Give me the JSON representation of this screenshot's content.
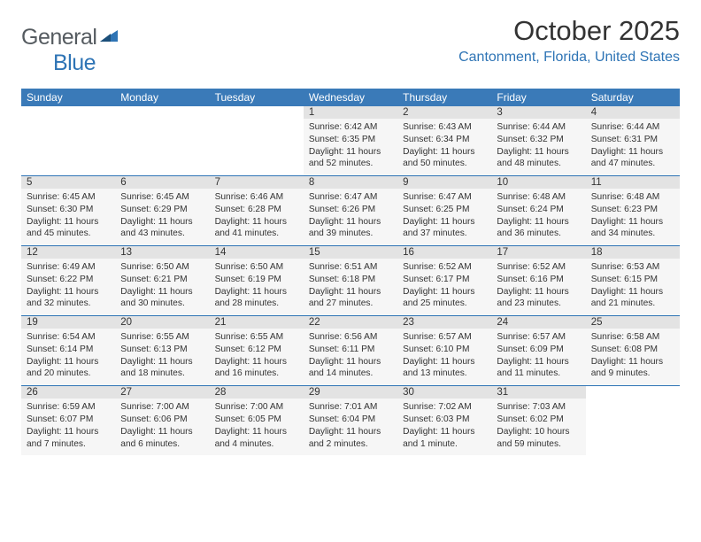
{
  "brand": {
    "word1": "General",
    "word2": "Blue",
    "text_color": "#555b60",
    "accent_color": "#2e74b5"
  },
  "title": "October 2025",
  "location": "Cantonment, Florida, United States",
  "theme": {
    "header_bg": "#3a7ab8",
    "header_text": "#ffffff",
    "daynum_bg": "#e3e3e3",
    "info_bg": "#f6f6f6",
    "border_color": "#2e74b5",
    "body_text": "#333333"
  },
  "day_headers": [
    "Sunday",
    "Monday",
    "Tuesday",
    "Wednesday",
    "Thursday",
    "Friday",
    "Saturday"
  ],
  "weeks": [
    [
      null,
      null,
      null,
      {
        "n": "1",
        "sunrise": "6:42 AM",
        "sunset": "6:35 PM",
        "daylight": "11 hours and 52 minutes."
      },
      {
        "n": "2",
        "sunrise": "6:43 AM",
        "sunset": "6:34 PM",
        "daylight": "11 hours and 50 minutes."
      },
      {
        "n": "3",
        "sunrise": "6:44 AM",
        "sunset": "6:32 PM",
        "daylight": "11 hours and 48 minutes."
      },
      {
        "n": "4",
        "sunrise": "6:44 AM",
        "sunset": "6:31 PM",
        "daylight": "11 hours and 47 minutes."
      }
    ],
    [
      {
        "n": "5",
        "sunrise": "6:45 AM",
        "sunset": "6:30 PM",
        "daylight": "11 hours and 45 minutes."
      },
      {
        "n": "6",
        "sunrise": "6:45 AM",
        "sunset": "6:29 PM",
        "daylight": "11 hours and 43 minutes."
      },
      {
        "n": "7",
        "sunrise": "6:46 AM",
        "sunset": "6:28 PM",
        "daylight": "11 hours and 41 minutes."
      },
      {
        "n": "8",
        "sunrise": "6:47 AM",
        "sunset": "6:26 PM",
        "daylight": "11 hours and 39 minutes."
      },
      {
        "n": "9",
        "sunrise": "6:47 AM",
        "sunset": "6:25 PM",
        "daylight": "11 hours and 37 minutes."
      },
      {
        "n": "10",
        "sunrise": "6:48 AM",
        "sunset": "6:24 PM",
        "daylight": "11 hours and 36 minutes."
      },
      {
        "n": "11",
        "sunrise": "6:48 AM",
        "sunset": "6:23 PM",
        "daylight": "11 hours and 34 minutes."
      }
    ],
    [
      {
        "n": "12",
        "sunrise": "6:49 AM",
        "sunset": "6:22 PM",
        "daylight": "11 hours and 32 minutes."
      },
      {
        "n": "13",
        "sunrise": "6:50 AM",
        "sunset": "6:21 PM",
        "daylight": "11 hours and 30 minutes."
      },
      {
        "n": "14",
        "sunrise": "6:50 AM",
        "sunset": "6:19 PM",
        "daylight": "11 hours and 28 minutes."
      },
      {
        "n": "15",
        "sunrise": "6:51 AM",
        "sunset": "6:18 PM",
        "daylight": "11 hours and 27 minutes."
      },
      {
        "n": "16",
        "sunrise": "6:52 AM",
        "sunset": "6:17 PM",
        "daylight": "11 hours and 25 minutes."
      },
      {
        "n": "17",
        "sunrise": "6:52 AM",
        "sunset": "6:16 PM",
        "daylight": "11 hours and 23 minutes."
      },
      {
        "n": "18",
        "sunrise": "6:53 AM",
        "sunset": "6:15 PM",
        "daylight": "11 hours and 21 minutes."
      }
    ],
    [
      {
        "n": "19",
        "sunrise": "6:54 AM",
        "sunset": "6:14 PM",
        "daylight": "11 hours and 20 minutes."
      },
      {
        "n": "20",
        "sunrise": "6:55 AM",
        "sunset": "6:13 PM",
        "daylight": "11 hours and 18 minutes."
      },
      {
        "n": "21",
        "sunrise": "6:55 AM",
        "sunset": "6:12 PM",
        "daylight": "11 hours and 16 minutes."
      },
      {
        "n": "22",
        "sunrise": "6:56 AM",
        "sunset": "6:11 PM",
        "daylight": "11 hours and 14 minutes."
      },
      {
        "n": "23",
        "sunrise": "6:57 AM",
        "sunset": "6:10 PM",
        "daylight": "11 hours and 13 minutes."
      },
      {
        "n": "24",
        "sunrise": "6:57 AM",
        "sunset": "6:09 PM",
        "daylight": "11 hours and 11 minutes."
      },
      {
        "n": "25",
        "sunrise": "6:58 AM",
        "sunset": "6:08 PM",
        "daylight": "11 hours and 9 minutes."
      }
    ],
    [
      {
        "n": "26",
        "sunrise": "6:59 AM",
        "sunset": "6:07 PM",
        "daylight": "11 hours and 7 minutes."
      },
      {
        "n": "27",
        "sunrise": "7:00 AM",
        "sunset": "6:06 PM",
        "daylight": "11 hours and 6 minutes."
      },
      {
        "n": "28",
        "sunrise": "7:00 AM",
        "sunset": "6:05 PM",
        "daylight": "11 hours and 4 minutes."
      },
      {
        "n": "29",
        "sunrise": "7:01 AM",
        "sunset": "6:04 PM",
        "daylight": "11 hours and 2 minutes."
      },
      {
        "n": "30",
        "sunrise": "7:02 AM",
        "sunset": "6:03 PM",
        "daylight": "11 hours and 1 minute."
      },
      {
        "n": "31",
        "sunrise": "7:03 AM",
        "sunset": "6:02 PM",
        "daylight": "10 hours and 59 minutes."
      },
      null
    ]
  ],
  "labels": {
    "sunrise": "Sunrise:",
    "sunset": "Sunset:",
    "daylight": "Daylight:"
  }
}
